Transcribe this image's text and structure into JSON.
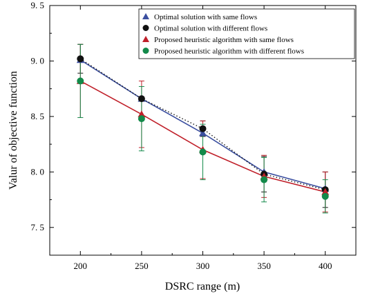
{
  "chart_data": {
    "type": "line",
    "title": "",
    "xlabel": "DSRC range (m)",
    "ylabel": "Valur of objective function",
    "x": [
      200,
      250,
      300,
      350,
      400
    ],
    "xlim": [
      175,
      425
    ],
    "ylim": [
      7.25,
      9.5
    ],
    "xticks": [
      200,
      250,
      300,
      350,
      400
    ],
    "yticks": [
      7.5,
      8.0,
      8.5,
      9.0,
      9.5
    ],
    "ytick_labels": [
      "7. 5",
      "8. 0",
      "8. 5",
      "9. 0",
      "9. 5"
    ],
    "grid": false,
    "legend_position": "top-right",
    "series": [
      {
        "name": "Optimal solution with same flows",
        "values": [
          9.01,
          8.66,
          8.35,
          8.0,
          7.85
        ],
        "color": "#3b4fa0",
        "marker": "triangle",
        "line": "solid",
        "error": [
          0.0,
          0.0,
          0.0,
          0.0,
          0.0
        ]
      },
      {
        "name": "Optimal solution with different flows",
        "values": [
          9.02,
          8.66,
          8.39,
          7.98,
          7.84
        ],
        "color": "#111111",
        "marker": "circle",
        "line": "dotted",
        "error": [
          0.13,
          0.0,
          0.07,
          0.16,
          0.16
        ]
      },
      {
        "name": "Proposed heuristic algorithm with same flows",
        "values": [
          8.82,
          8.52,
          8.2,
          7.96,
          7.82
        ],
        "color": "#c0202a",
        "marker": "triangle",
        "line": "solid",
        "error": [
          0.33,
          0.3,
          0.26,
          0.19,
          0.18
        ]
      },
      {
        "name": "Proposed heuristic algorithm with different flows",
        "values": [
          8.82,
          8.48,
          8.18,
          7.93,
          7.78
        ],
        "color": "#138a4a",
        "marker": "circle",
        "line": "none",
        "error": [
          0.33,
          0.29,
          0.25,
          0.2,
          0.15
        ]
      }
    ]
  }
}
